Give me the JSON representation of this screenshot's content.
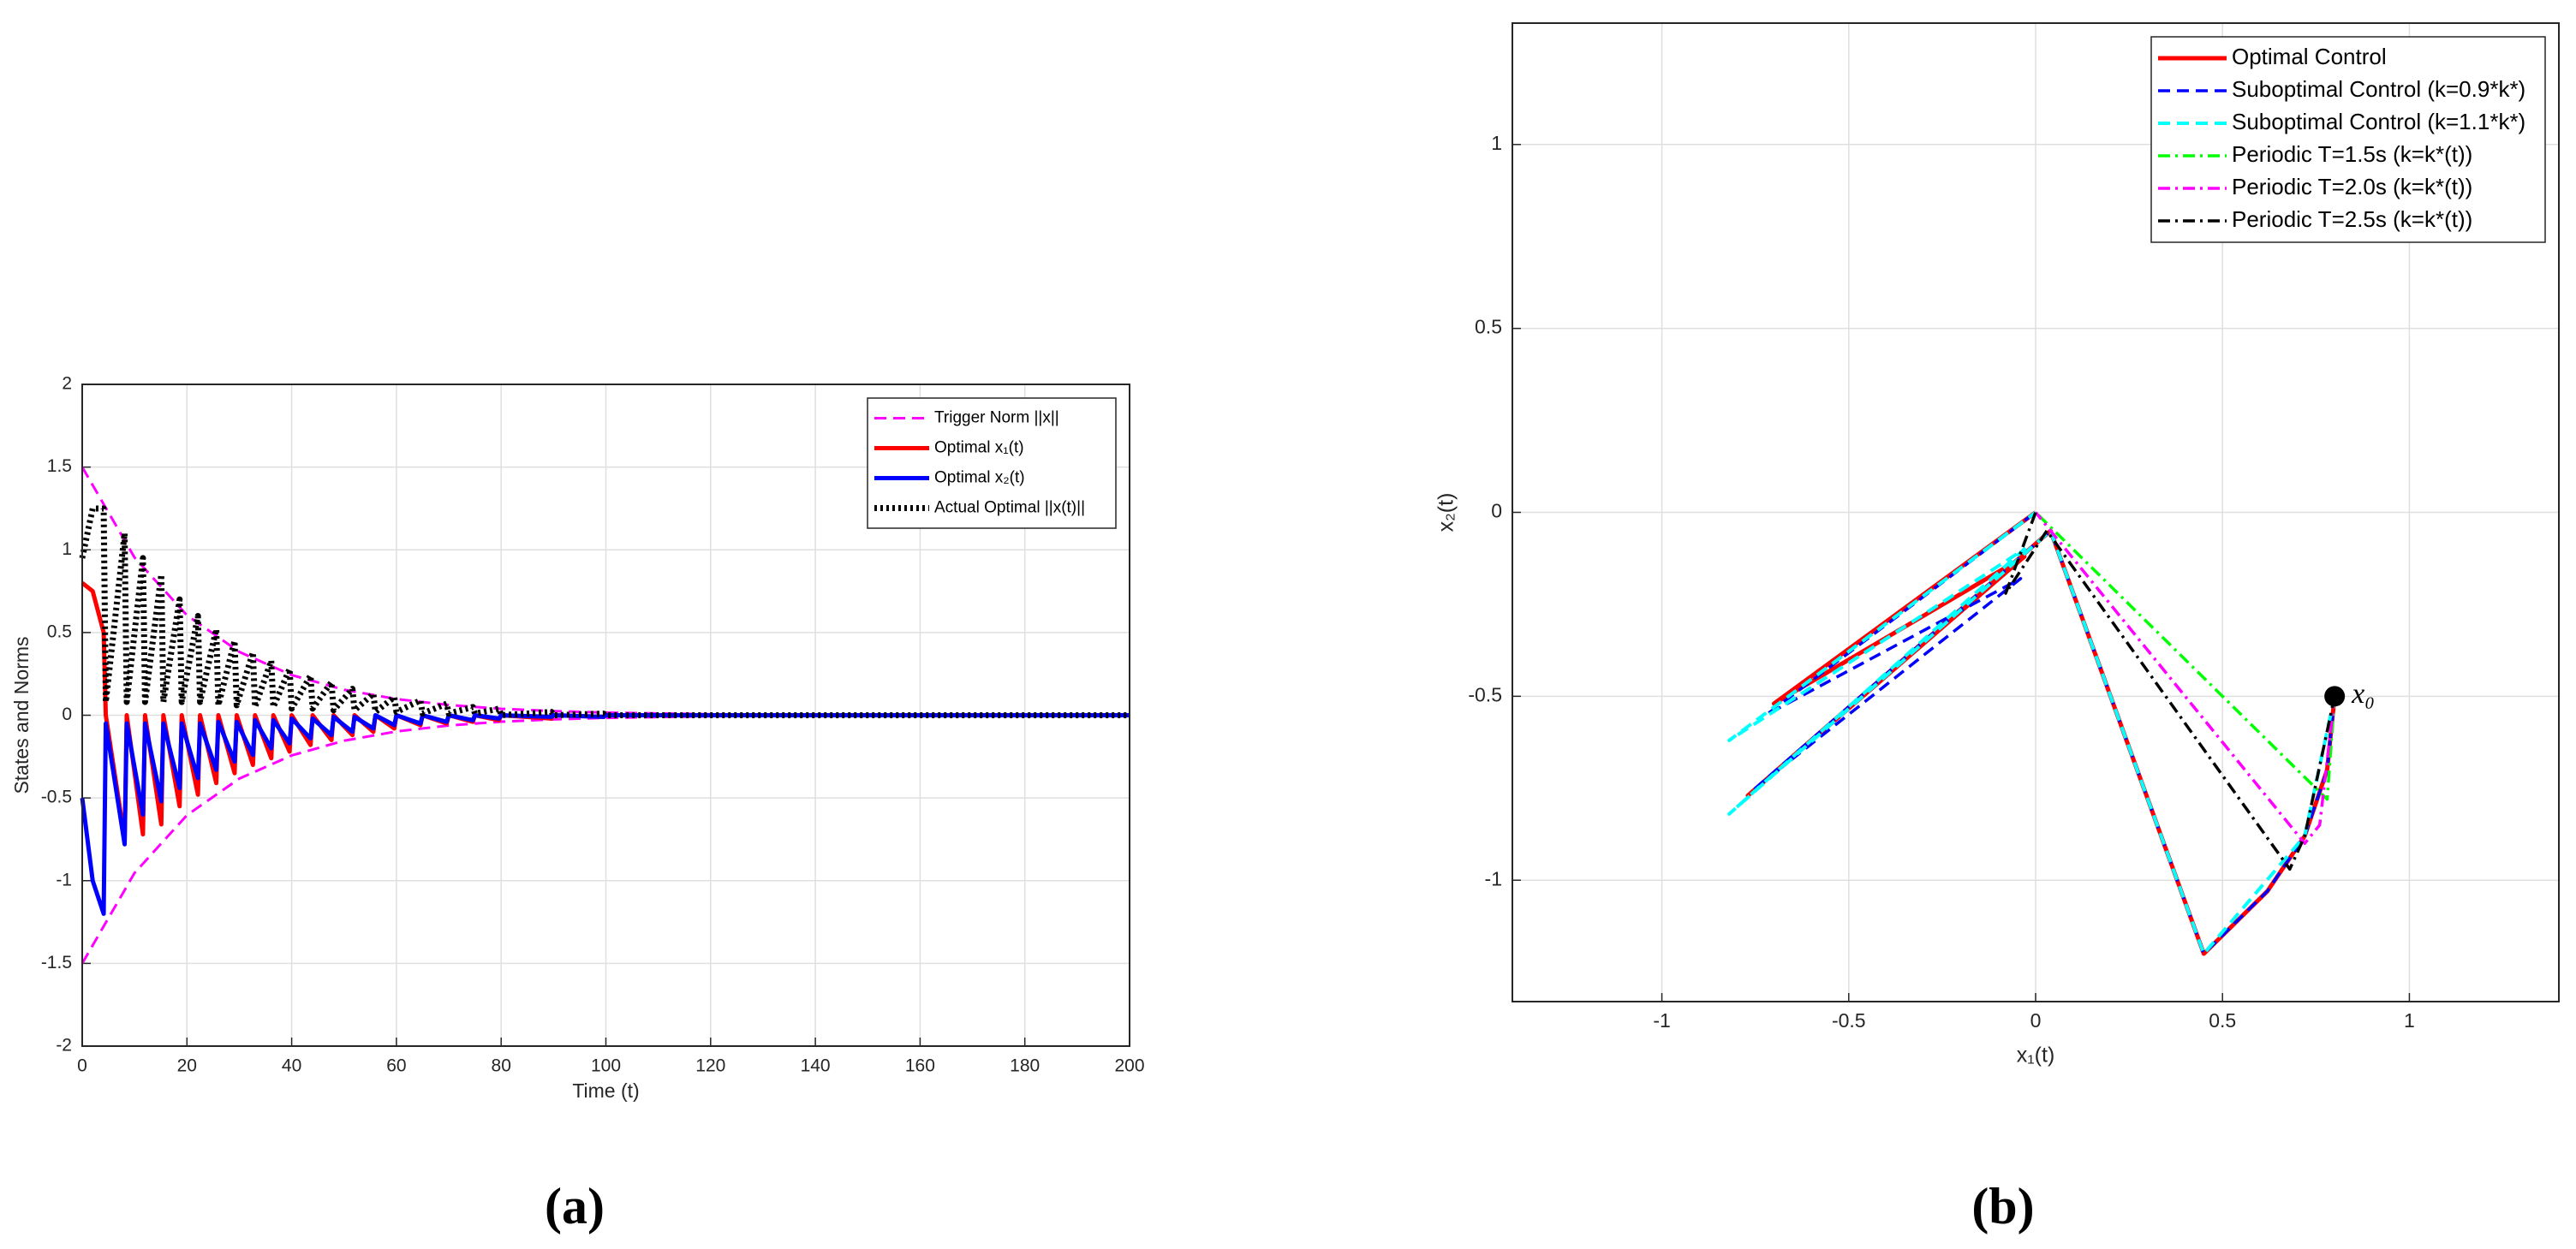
{
  "chart_data": [
    {
      "type": "line",
      "caption": "(a)",
      "xlabel": "Time (t)",
      "ylabel": "States and Norms",
      "xlim": [
        0,
        200
      ],
      "xticks": [
        0,
        20,
        40,
        60,
        80,
        100,
        120,
        140,
        160,
        180,
        200
      ],
      "ylim": [
        -2,
        2
      ],
      "yticks": [
        -2,
        -1.5,
        -1,
        -0.5,
        0,
        0.5,
        1,
        1.5,
        2
      ],
      "grid": true,
      "legend": "northeast",
      "x": [
        0,
        2,
        4.1,
        4.5,
        8.1,
        8.5,
        11.6,
        12,
        15.1,
        15.5,
        18.6,
        19,
        22.1,
        22.5,
        25.6,
        26,
        29.1,
        29.5,
        32.6,
        33,
        36.1,
        36.5,
        39.6,
        40,
        43.6,
        44,
        47.6,
        48,
        51.6,
        52,
        55.6,
        56,
        59.6,
        60,
        64.6,
        65,
        69.6,
        70,
        74.6,
        75,
        79.6,
        80,
        89.6,
        90,
        99.6,
        100,
        200
      ],
      "series": [
        {
          "name": "Trigger Norm ||x||",
          "color": "#ff00ff",
          "dash": "dashed",
          "linewidth": 3,
          "x": [
            0,
            10,
            20,
            30,
            40,
            50,
            60,
            70,
            80,
            90,
            100,
            120,
            140,
            160,
            180,
            200
          ],
          "values": [
            1.5,
            0.953,
            0.604,
            0.383,
            0.243,
            0.154,
            0.098,
            0.062,
            0.039,
            0.025,
            0.016,
            0.006,
            0.003,
            0.001,
            0,
            0
          ],
          "lower_values": [
            -1.5,
            -0.953,
            -0.604,
            -0.383,
            -0.243,
            -0.154,
            -0.098,
            -0.062,
            -0.039,
            -0.025,
            -0.016,
            -0.006,
            -0.003,
            -0.001,
            0,
            0
          ]
        },
        {
          "name": "Optimal x₁(t)",
          "color": "#ff0000",
          "dash": "solid",
          "linewidth": 5,
          "values": [
            0.8,
            0.75,
            0.5,
            0,
            -0.75,
            0,
            -0.72,
            0,
            -0.66,
            0,
            -0.55,
            0,
            -0.48,
            0,
            -0.41,
            0,
            -0.35,
            0,
            -0.3,
            0,
            -0.26,
            0,
            -0.22,
            0,
            -0.18,
            0,
            -0.15,
            0,
            -0.12,
            0,
            -0.1,
            0,
            -0.08,
            0,
            -0.06,
            0,
            -0.05,
            0,
            -0.04,
            0,
            -0.03,
            0,
            -0.02,
            0,
            -0.01,
            0,
            0
          ]
        },
        {
          "name": "Optimal x₂(t)",
          "color": "#0000ff",
          "dash": "solid",
          "linewidth": 5,
          "values": [
            -0.5,
            -1.0,
            -1.2,
            -0.05,
            -0.78,
            -0.05,
            -0.6,
            -0.05,
            -0.52,
            -0.05,
            -0.44,
            -0.05,
            -0.38,
            -0.05,
            -0.33,
            -0.04,
            -0.28,
            -0.04,
            -0.24,
            -0.03,
            -0.2,
            -0.03,
            -0.17,
            -0.02,
            -0.14,
            -0.02,
            -0.12,
            -0.01,
            -0.1,
            -0.01,
            -0.08,
            0,
            -0.06,
            0,
            -0.05,
            0,
            -0.04,
            0,
            -0.03,
            0,
            -0.02,
            0,
            -0.01,
            0,
            -0.01,
            0,
            0
          ]
        },
        {
          "name": "Actual Optimal ||x(t)||",
          "color": "#000000",
          "dash": "dotted",
          "linewidth": 7,
          "values": [
            0.95,
            1.25,
            1.25,
            0.08,
            1.1,
            0.08,
            0.95,
            0.08,
            0.85,
            0.08,
            0.7,
            0.08,
            0.6,
            0.08,
            0.52,
            0.06,
            0.45,
            0.06,
            0.38,
            0.05,
            0.33,
            0.05,
            0.28,
            0.04,
            0.24,
            0.04,
            0.2,
            0.03,
            0.16,
            0.03,
            0.13,
            0.02,
            0.11,
            0.02,
            0.09,
            0.01,
            0.07,
            0.01,
            0.05,
            0.01,
            0.04,
            0,
            0.02,
            0,
            0.01,
            0,
            0
          ]
        }
      ]
    },
    {
      "type": "line",
      "caption": "(b)",
      "xlabel": "x₁(t)",
      "ylabel": "x₂(t)",
      "xlim": [
        -1.4,
        1.4
      ],
      "xticks": [
        -1,
        -0.5,
        0,
        0.5,
        1
      ],
      "ylim": [
        -1.33,
        1.33
      ],
      "yticks": [
        -1,
        -0.5,
        0,
        0.5,
        1
      ],
      "grid": true,
      "legend": "northeast",
      "annotations": [
        {
          "text": "x₀",
          "x": 0.8,
          "y": -0.5
        }
      ],
      "series": [
        {
          "name": "Optimal Control",
          "color": "#ff0000",
          "dash": "solid",
          "linewidth": 5,
          "x": [
            0.8,
            0.78,
            0.72,
            0.62,
            0.45,
            0.04,
            -0.77,
            -0.03,
            -0.7,
            0
          ],
          "values": [
            -0.5,
            -0.7,
            -0.88,
            -1.03,
            -1.2,
            -0.05,
            -0.77,
            -0.12,
            -0.52,
            0
          ]
        },
        {
          "name": "Suboptimal Control (k=0.9*k*)",
          "color": "#0000ff",
          "dash": "dashed",
          "linewidth": 3.5,
          "x": [
            0.8,
            0.78,
            0.72,
            0.62,
            0.45,
            0.04,
            -0.75,
            -0.04,
            -0.72,
            0
          ],
          "values": [
            -0.5,
            -0.7,
            -0.88,
            -1.03,
            -1.2,
            -0.05,
            -0.75,
            -0.18,
            -0.55,
            0
          ]
        },
        {
          "name": "Suboptimal Control (k=1.1*k*)",
          "color": "#00ffff",
          "dash": "dashed",
          "linewidth": 4,
          "x": [
            0.8,
            0.72,
            0.45,
            0.04,
            -0.82,
            -0.03,
            -0.82,
            0
          ],
          "values": [
            -0.5,
            -0.88,
            -1.2,
            -0.05,
            -0.82,
            -0.1,
            -0.62,
            0
          ]
        },
        {
          "name": "Periodic T=1.5s (k=k*(t))",
          "color": "#00ff00",
          "dash": "dashdot",
          "linewidth": 3.5,
          "x": [
            0.8,
            0.78,
            0.05,
            0
          ],
          "values": [
            -0.5,
            -0.78,
            -0.05,
            0
          ]
        },
        {
          "name": "Periodic T=2.0s (k=k*(t))",
          "color": "#ff00ff",
          "dash": "dashdot",
          "linewidth": 3.5,
          "x": [
            0.8,
            0.76,
            0.72,
            0.04,
            0
          ],
          "values": [
            -0.5,
            -0.85,
            -0.9,
            -0.05,
            0
          ]
        },
        {
          "name": "Periodic T=2.5s (k=k*(t))",
          "color": "#000000",
          "dash": "dashdot",
          "linewidth": 3.5,
          "x": [
            0.8,
            0.72,
            0.68,
            0.03,
            -0.08,
            0
          ],
          "values": [
            -0.5,
            -0.88,
            -0.97,
            -0.05,
            -0.22,
            0
          ]
        }
      ]
    }
  ]
}
